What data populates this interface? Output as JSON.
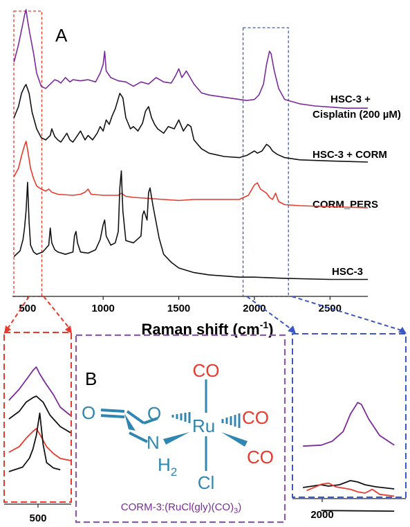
{
  "colors": {
    "purple": "#7a2a9a",
    "black": "#111111",
    "red": "#e8392c",
    "red_box": "#e8392c",
    "blue_box": "#3b57c4",
    "purple_box": "#8a5aa8",
    "teal": "#2f86b0",
    "co_red": "#e8392c",
    "axis": "#222222"
  },
  "panel_a": {
    "label": "A",
    "xlabel_main": "Raman shift (cm",
    "xlabel_sup": "-1",
    "xlabel_end": ")"
  },
  "panel_b": {
    "label": "B",
    "caption_main": "CORM-3:(RuCl(gly)(CO)",
    "caption_sub": "3",
    "caption_end": ")",
    "atoms": {
      "ru": "Ru",
      "o": "O",
      "n": "N",
      "h": "H",
      "h_sub": "2",
      "cl": "Cl",
      "co": "CO"
    }
  },
  "zoom_left": {
    "tick_label": "500"
  },
  "zoom_right": {
    "tick_label": "2000"
  },
  "chart_data": [
    {
      "type": "line",
      "xlabel": "Raman shift (cm-1)",
      "xlim": [
        400,
        2750
      ],
      "xticks": [
        500,
        1000,
        1500,
        2000,
        2500
      ],
      "y_axis": "stacked offset spectra, no y scale shown",
      "grid": false,
      "annotations": [
        "HSC-3 + Cisplatin (200 µM)",
        "HSC-3 + CORM",
        "CORM_PERS",
        "HSC-3"
      ],
      "highlight_boxes": [
        "red dashed box around ~400-590 cm-1",
        "blue dashed box around ~1920-2230 cm-1"
      ],
      "series": [
        {
          "name": "HSC-3 + Cisplatin (200 µM)",
          "color": "#7a2a9a",
          "x": [
            410,
            440,
            470,
            480,
            490,
            500,
            515,
            540,
            560,
            590,
            620,
            650,
            680,
            700,
            720,
            750,
            780,
            800,
            850,
            900,
            950,
            980,
            1000,
            1010,
            1020,
            1050,
            1100,
            1150,
            1200,
            1250,
            1300,
            1350,
            1400,
            1450,
            1480,
            1500,
            1520,
            1550,
            1600,
            1650,
            1700,
            1800,
            1900,
            1950,
            2000,
            2030,
            2060,
            2080,
            2100,
            2110,
            2130,
            2160,
            2200,
            2300,
            2400,
            2500,
            2600,
            2750
          ],
          "y": [
            0.52,
            0.68,
            0.88,
            0.95,
            1.0,
            0.9,
            0.78,
            0.6,
            0.42,
            0.3,
            0.28,
            0.32,
            0.36,
            0.35,
            0.33,
            0.38,
            0.34,
            0.36,
            0.35,
            0.36,
            0.34,
            0.42,
            0.5,
            0.62,
            0.44,
            0.38,
            0.35,
            0.34,
            0.3,
            0.34,
            0.32,
            0.38,
            0.34,
            0.33,
            0.4,
            0.46,
            0.38,
            0.44,
            0.32,
            0.24,
            0.22,
            0.2,
            0.18,
            0.17,
            0.18,
            0.22,
            0.32,
            0.5,
            0.62,
            0.6,
            0.45,
            0.28,
            0.18,
            0.14,
            0.12,
            0.11,
            0.1,
            0.1
          ]
        },
        {
          "name": "HSC-3 + CORM",
          "color": "#111111",
          "x": [
            410,
            440,
            460,
            480,
            490,
            510,
            530,
            560,
            590,
            620,
            650,
            660,
            680,
            700,
            720,
            740,
            760,
            780,
            800,
            820,
            850,
            880,
            900,
            930,
            960,
            980,
            1000,
            1020,
            1040,
            1060,
            1080,
            1110,
            1130,
            1150,
            1180,
            1200,
            1230,
            1260,
            1280,
            1300,
            1320,
            1340,
            1360,
            1400,
            1430,
            1470,
            1500,
            1530,
            1560,
            1580,
            1600,
            1650,
            1700,
            1800,
            1900,
            1950,
            2000,
            2020,
            2050,
            2080,
            2100,
            2120,
            2150,
            2200,
            2300,
            2500,
            2750
          ],
          "y": [
            0.5,
            0.6,
            0.72,
            0.78,
            0.8,
            0.72,
            0.55,
            0.4,
            0.32,
            0.3,
            0.34,
            0.4,
            0.33,
            0.3,
            0.28,
            0.32,
            0.36,
            0.3,
            0.28,
            0.32,
            0.38,
            0.3,
            0.34,
            0.3,
            0.36,
            0.42,
            0.38,
            0.48,
            0.44,
            0.52,
            0.58,
            0.72,
            0.68,
            0.5,
            0.4,
            0.42,
            0.38,
            0.45,
            0.56,
            0.6,
            0.5,
            0.44,
            0.4,
            0.36,
            0.42,
            0.4,
            0.48,
            0.38,
            0.44,
            0.42,
            0.3,
            0.22,
            0.18,
            0.15,
            0.14,
            0.16,
            0.2,
            0.18,
            0.2,
            0.26,
            0.24,
            0.2,
            0.17,
            0.14,
            0.12,
            0.11,
            0.1
          ]
        },
        {
          "name": "CORM_PERS",
          "color": "#e8392c",
          "x": [
            410,
            440,
            460,
            480,
            490,
            500,
            520,
            540,
            560,
            590,
            620,
            640,
            660,
            700,
            800,
            850,
            880,
            900,
            920,
            1000,
            1100,
            1120,
            1150,
            1200,
            1300,
            1400,
            1500,
            1600,
            1700,
            1800,
            1900,
            1960,
            2000,
            2020,
            2040,
            2060,
            2080,
            2100,
            2120,
            2140,
            2160,
            2200,
            2300,
            2500,
            2750
          ],
          "y": [
            0.42,
            0.5,
            0.62,
            0.72,
            0.76,
            0.68,
            0.5,
            0.4,
            0.33,
            0.3,
            0.28,
            0.3,
            0.27,
            0.25,
            0.24,
            0.25,
            0.27,
            0.3,
            0.25,
            0.24,
            0.24,
            0.26,
            0.23,
            0.22,
            0.21,
            0.2,
            0.19,
            0.2,
            0.2,
            0.2,
            0.2,
            0.24,
            0.34,
            0.36,
            0.3,
            0.28,
            0.26,
            0.22,
            0.2,
            0.26,
            0.18,
            0.15,
            0.14,
            0.13,
            0.12
          ]
        },
        {
          "name": "HSC-3",
          "color": "#111111",
          "x": [
            410,
            450,
            470,
            480,
            490,
            500,
            510,
            520,
            540,
            560,
            600,
            640,
            650,
            660,
            680,
            700,
            750,
            800,
            810,
            820,
            830,
            850,
            900,
            950,
            980,
            1000,
            1010,
            1020,
            1050,
            1080,
            1100,
            1110,
            1120,
            1130,
            1150,
            1200,
            1250,
            1260,
            1270,
            1290,
            1300,
            1310,
            1330,
            1350,
            1370,
            1400,
            1450,
            1500,
            1600,
            1700,
            1800,
            1900,
            2000,
            2200,
            2500,
            2750
          ],
          "y": [
            0.3,
            0.35,
            0.45,
            0.55,
            0.7,
            0.95,
            0.6,
            0.4,
            0.34,
            0.32,
            0.34,
            0.4,
            0.55,
            0.42,
            0.36,
            0.34,
            0.32,
            0.34,
            0.48,
            0.52,
            0.42,
            0.34,
            0.33,
            0.36,
            0.45,
            0.58,
            0.62,
            0.48,
            0.4,
            0.42,
            0.52,
            0.9,
            1.05,
            0.7,
            0.44,
            0.42,
            0.48,
            0.66,
            0.7,
            0.62,
            0.86,
            0.9,
            0.74,
            0.6,
            0.46,
            0.32,
            0.25,
            0.2,
            0.16,
            0.14,
            0.13,
            0.12,
            0.12,
            0.11,
            0.1,
            0.1
          ]
        }
      ]
    },
    {
      "type": "line",
      "xticks": [
        500
      ],
      "series_colors": [
        "#7a2a9a",
        "#111111",
        "#e8392c",
        "#111111"
      ]
    },
    {
      "type": "line",
      "xticks": [
        2000
      ],
      "series_colors": [
        "#7a2a9a",
        "#111111",
        "#e8392c",
        "#111111"
      ]
    }
  ]
}
